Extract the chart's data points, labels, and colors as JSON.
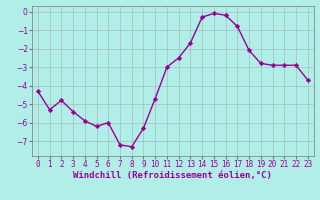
{
  "x": [
    0,
    1,
    2,
    3,
    4,
    5,
    6,
    7,
    8,
    9,
    10,
    11,
    12,
    13,
    14,
    15,
    16,
    17,
    18,
    19,
    20,
    21,
    22,
    23
  ],
  "y": [
    -4.3,
    -5.3,
    -4.8,
    -5.4,
    -5.9,
    -6.2,
    -6.0,
    -7.2,
    -7.3,
    -6.3,
    -4.7,
    -3.0,
    -2.5,
    -1.7,
    -0.3,
    -0.1,
    -0.2,
    -0.8,
    -2.1,
    -2.8,
    -2.9,
    -2.9,
    -2.9,
    -3.7
  ],
  "line_color": "#990099",
  "marker": "D",
  "marker_size": 2.2,
  "bg_color": "#b2eee8",
  "grid_color": "#999999",
  "xlabel": "Windchill (Refroidissement éolien,°C)",
  "xlabel_fontsize": 6.5,
  "tick_fontsize": 5.5,
  "ylim": [
    -7.8,
    0.3
  ],
  "yticks": [
    0,
    -1,
    -2,
    -3,
    -4,
    -5,
    -6,
    -7
  ],
  "xlim": [
    -0.5,
    23.5
  ],
  "line_width": 1.0
}
